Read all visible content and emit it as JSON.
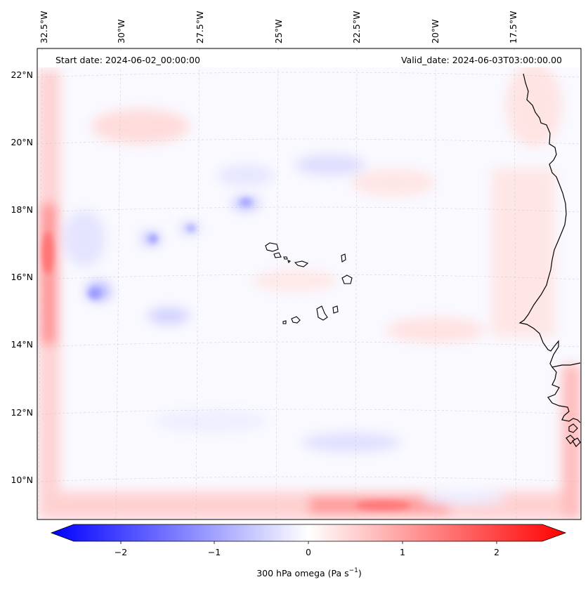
{
  "header": {
    "start_date": "Start date: 2024-06-02_00:00:00",
    "valid_date": "Valid_date: 2024-06-03T03:00:00.00"
  },
  "lon_labels": [
    "32.5°W",
    "30°W",
    "27.5°W",
    "25°W",
    "22.5°W",
    "20°W",
    "17.5°W"
  ],
  "lat_labels": [
    "22°N",
    "20°N",
    "18°N",
    "16°N",
    "14°N",
    "12°N",
    "10°N"
  ],
  "colorbar": {
    "label_main": "300 hPa omega (Pa s",
    "label_exp": "−1",
    "label_close": ")",
    "ticks": [
      "−2",
      "−1",
      "0",
      "1",
      "2"
    ],
    "tick_values": [
      -2,
      -1,
      0,
      1,
      2
    ],
    "range": [
      -2.5,
      2.5
    ],
    "colormap": "bwr",
    "color_min": "#0000ff",
    "color_mid": "#ffffff",
    "color_max": "#ff0000"
  },
  "map": {
    "field": "300 hPa omega",
    "coastline_color": "#000000",
    "gridline_color": "#c8c8c8"
  }
}
